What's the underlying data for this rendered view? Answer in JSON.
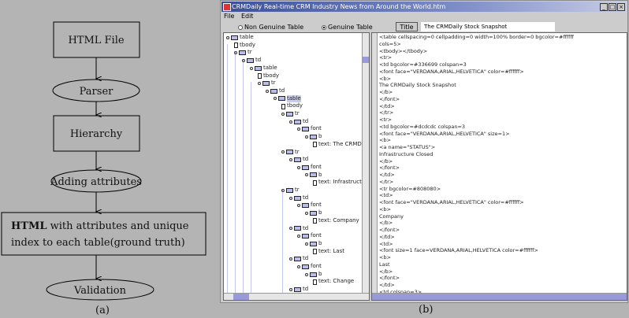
{
  "flowchart": {
    "nodes": [
      {
        "shape": "box",
        "text": "HTML File"
      },
      {
        "shape": "ellipse",
        "text": "Parser"
      },
      {
        "shape": "box",
        "text": "Hierarchy"
      },
      {
        "shape": "ellipse",
        "text": "Adding attributes"
      },
      {
        "shape": "box",
        "bold": "HTML",
        "line1": " with attributes and unique",
        "line2": "index to each table(ground truth)"
      },
      {
        "shape": "ellipse",
        "text": "Validation"
      }
    ],
    "caption": "(a)"
  },
  "screenshot": {
    "caption": "(b)",
    "window_title": "CRMDaily Real-time CRM Industry News from Around the World.htm",
    "window_buttons": [
      "_",
      "□",
      "×"
    ],
    "menu": [
      "File",
      "Edit"
    ],
    "radio_options": [
      {
        "label": "Non Genuine Table",
        "selected": false
      },
      {
        "label": "Genuine Table",
        "selected": true
      }
    ],
    "title_button": "Title",
    "title_value": "The CRMDaily Stock Snapshot",
    "tree": [
      {
        "label": "table",
        "level": 0,
        "type": "folder"
      },
      {
        "label": "tbody",
        "level": 1,
        "type": "leaf"
      },
      {
        "label": "tr",
        "level": 1,
        "type": "folder"
      },
      {
        "label": "td",
        "level": 2,
        "type": "folder"
      },
      {
        "label": "table",
        "level": 3,
        "type": "folder"
      },
      {
        "label": "tbody",
        "level": 4,
        "type": "leaf"
      },
      {
        "label": "tr",
        "level": 4,
        "type": "folder"
      },
      {
        "label": "td",
        "level": 5,
        "type": "folder"
      },
      {
        "label": "table",
        "level": 6,
        "type": "folder",
        "selected": true
      },
      {
        "label": "tbody",
        "level": 7,
        "type": "leaf"
      },
      {
        "label": "tr",
        "level": 7,
        "type": "folder"
      },
      {
        "label": "td",
        "level": 8,
        "type": "folder"
      },
      {
        "label": "font",
        "level": 9,
        "type": "folder"
      },
      {
        "label": "b",
        "level": 10,
        "type": "folder"
      },
      {
        "label": "text: The CRMDa",
        "level": 11,
        "type": "leaf"
      },
      {
        "label": "tr",
        "level": 7,
        "type": "folder"
      },
      {
        "label": "td",
        "level": 8,
        "type": "folder"
      },
      {
        "label": "font",
        "level": 9,
        "type": "folder"
      },
      {
        "label": "b",
        "level": 10,
        "type": "folder"
      },
      {
        "label": "text: Infrastructu",
        "level": 11,
        "type": "leaf"
      },
      {
        "label": "tr",
        "level": 7,
        "type": "folder"
      },
      {
        "label": "td",
        "level": 8,
        "type": "folder"
      },
      {
        "label": "font",
        "level": 9,
        "type": "folder"
      },
      {
        "label": "b",
        "level": 10,
        "type": "folder"
      },
      {
        "label": "text: Company",
        "level": 11,
        "type": "leaf"
      },
      {
        "label": "td",
        "level": 8,
        "type": "folder"
      },
      {
        "label": "font",
        "level": 9,
        "type": "folder"
      },
      {
        "label": "b",
        "level": 10,
        "type": "folder"
      },
      {
        "label": "text: Last",
        "level": 11,
        "type": "leaf"
      },
      {
        "label": "td",
        "level": 8,
        "type": "folder"
      },
      {
        "label": "font",
        "level": 9,
        "type": "folder"
      },
      {
        "label": "b",
        "level": 10,
        "type": "folder"
      },
      {
        "label": "text: Change",
        "level": 11,
        "type": "leaf"
      },
      {
        "label": "td",
        "level": 8,
        "type": "folder"
      },
      {
        "label": "font",
        "level": 9,
        "type": "folder"
      }
    ],
    "source_lines": [
      "<table cellspacing=0 cellpadding=0 width=100% border=0 bgcolor=#ffffff",
      "cols=5>",
      "<tbody></tbody>",
      "<tr>",
      "<td bgcolor=#336699 colspan=3",
      "<font face=\"VERDANA,ARIAL,HELVETICA\" color=#ffffff>",
      "<b>",
      "The CRMDaily Stock Snapshot",
      "</b>",
      "</font>",
      "</td>",
      "</tr>",
      "<tr>",
      "<td bgcolor=#dcdcdc colspan=3",
      "<font face=\"VERDANA,ARIAL,HELVETICA\" size=1>",
      "<b>",
      "<a name=\"STATUS\">",
      "Infrastructure Closed",
      "</b>",
      "</font>",
      "</td>",
      "</tr>",
      "<tr bgcolor=#808080>",
      "<td>",
      "<font face=\"VERDANA,ARIAL,HELVETICA\" color=#ffffff>",
      "<b>",
      "Company",
      "</b>",
      "</font>",
      "</td>",
      "<td>",
      "<font size=1 face=VERDANA,ARIAL,HELVETICA color=#ffffff>",
      "<b>",
      "Last",
      "</b>",
      "</font>",
      "</td>",
      "<td colspan=3>"
    ]
  },
  "colors": {
    "background": "#b4b4b4",
    "titlebar": "#3b4f9a",
    "tree_folder": "#b9bde8",
    "scroll_thumb": "#9a9ad8"
  }
}
